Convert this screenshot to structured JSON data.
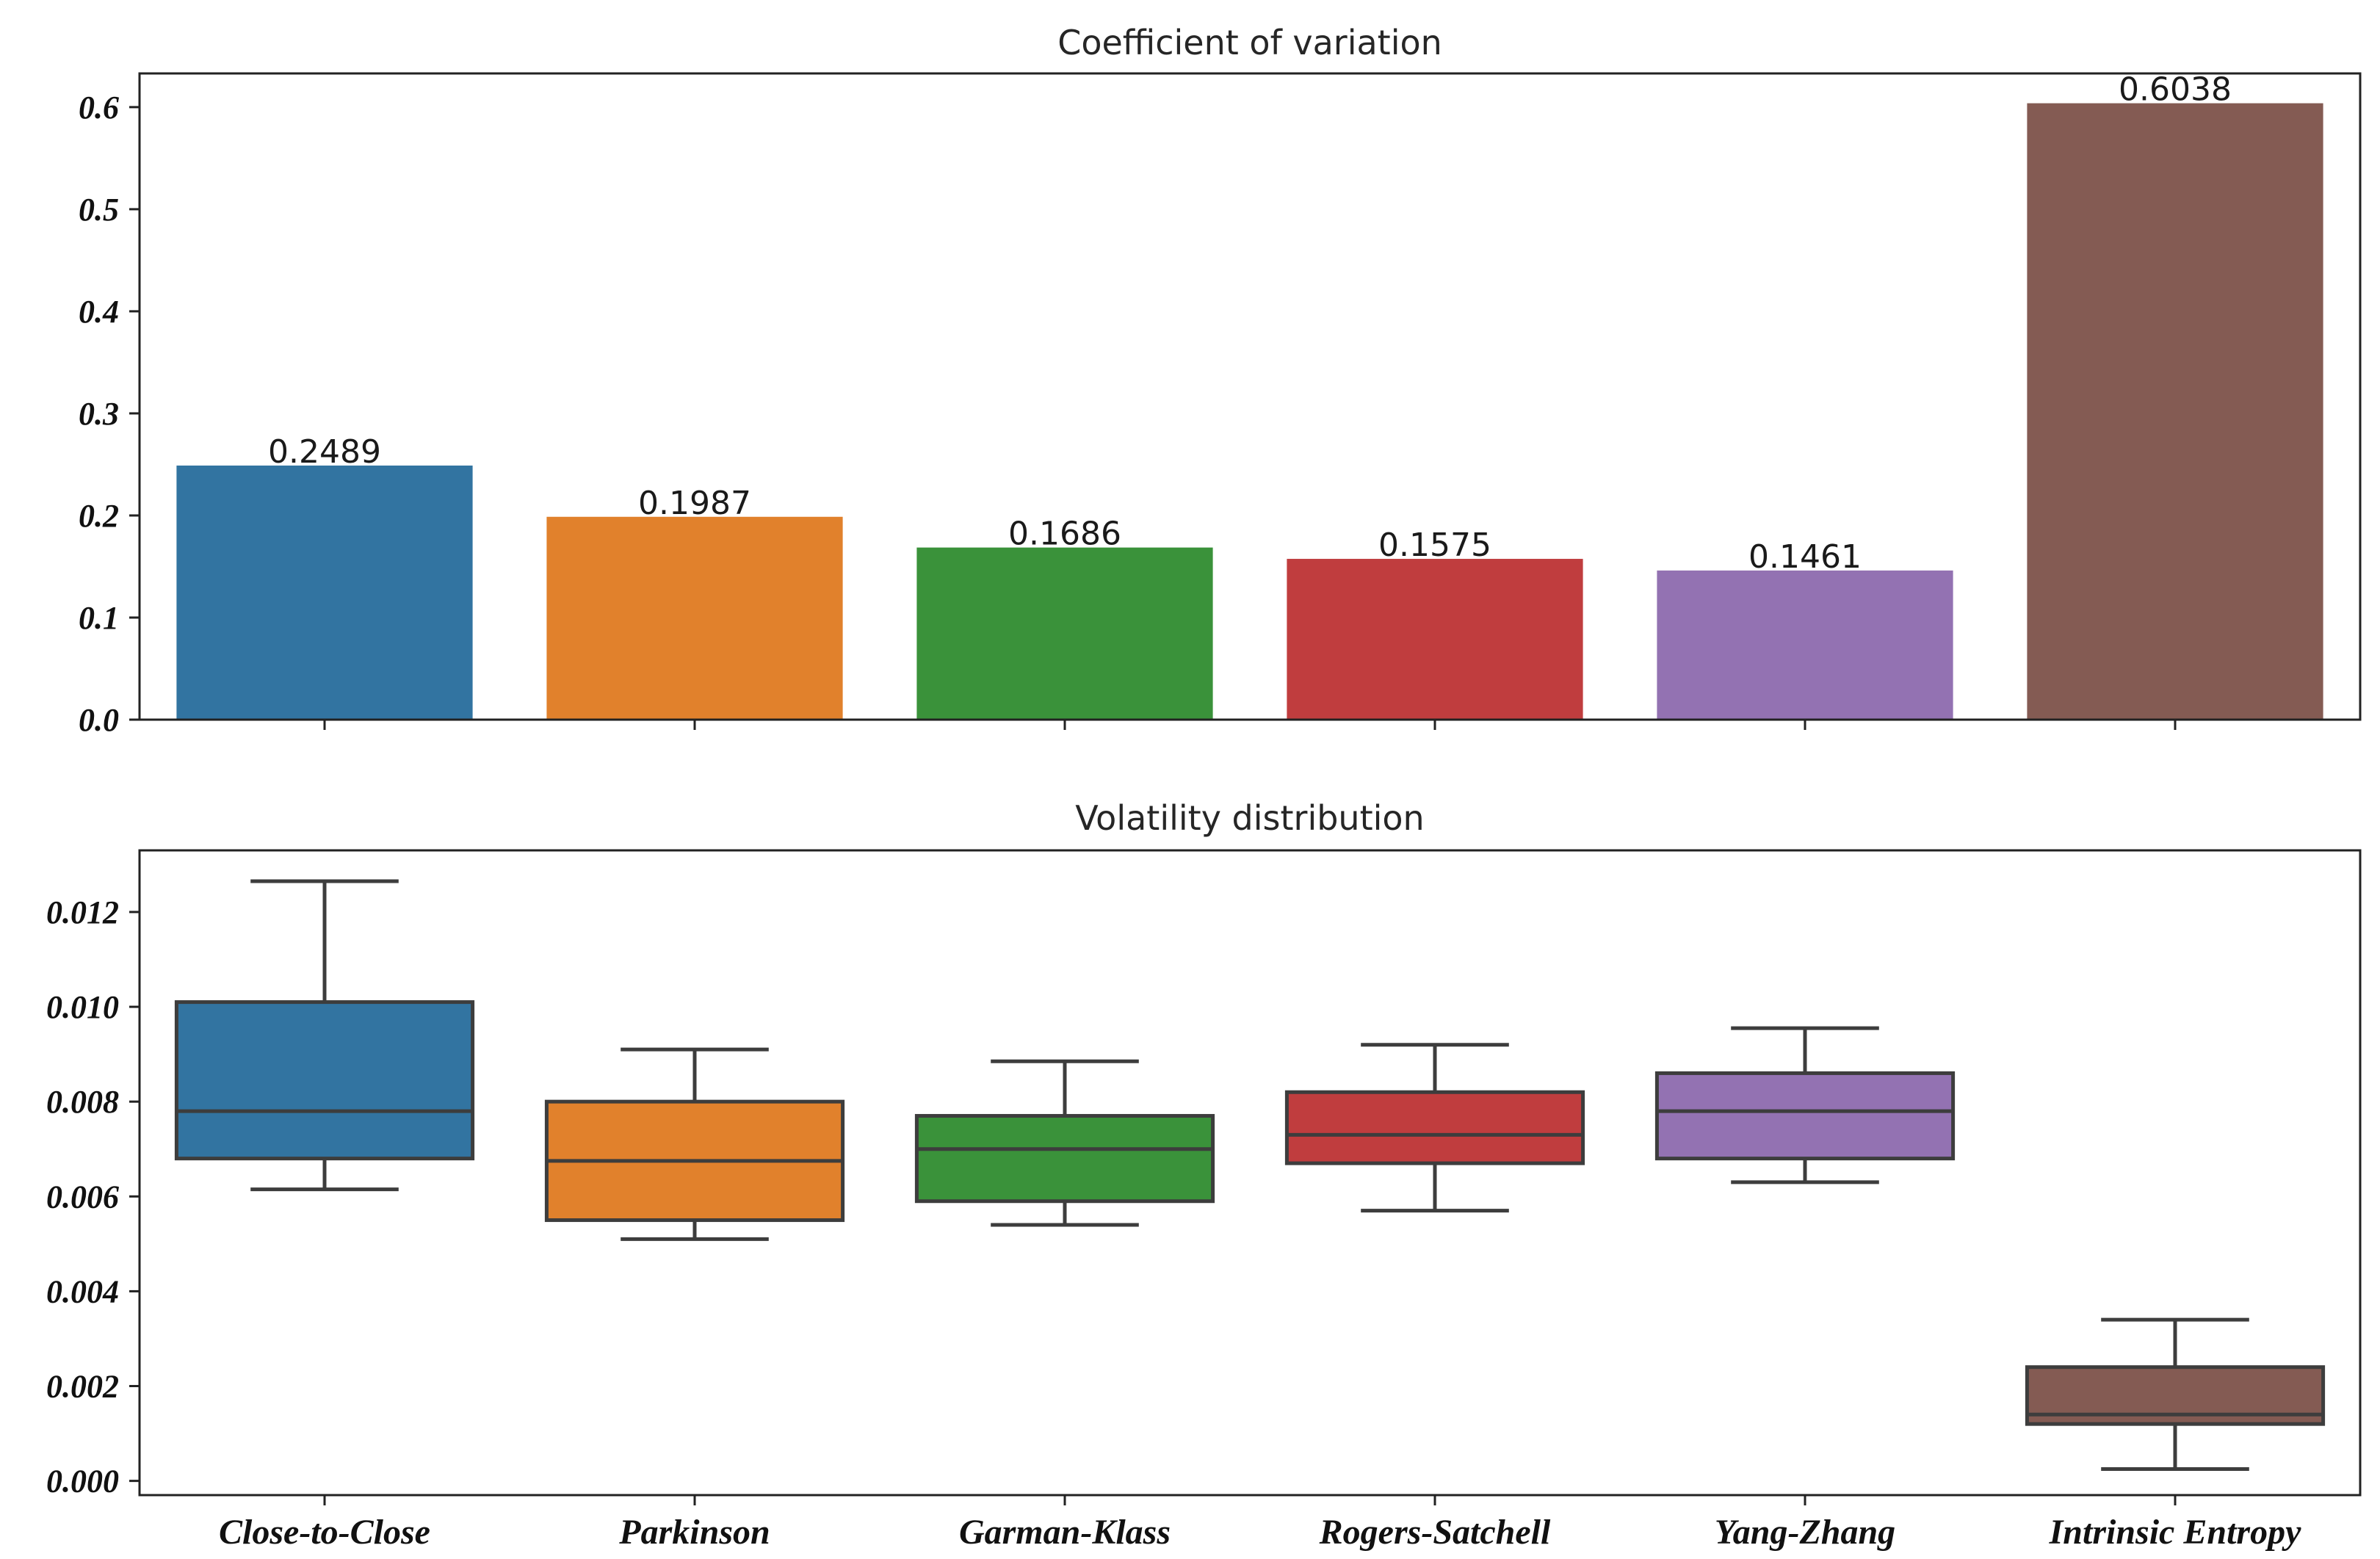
{
  "categories": [
    "Close-to-Close",
    "Parkinson",
    "Garman-Klass",
    "Rogers-Satchell",
    "Yang-Zhang",
    "Intrinsic Entropy"
  ],
  "colors": [
    "#3274a1",
    "#e1812c",
    "#3a923a",
    "#c03d3e",
    "#9372b2",
    "#845b53"
  ],
  "chart_data": [
    {
      "type": "bar",
      "title": "Coefficient of variation",
      "xlabel": "",
      "ylabel": "",
      "categories": [
        "Close-to-Close",
        "Parkinson",
        "Garman-Klass",
        "Rogers-Satchell",
        "Yang-Zhang",
        "Intrinsic Entropy"
      ],
      "values": [
        0.2489,
        0.1987,
        0.1686,
        0.1575,
        0.1461,
        0.6038
      ],
      "data_labels": [
        "0.2489",
        "0.1987",
        "0.1686",
        "0.1575",
        "0.1461",
        "0.6038"
      ],
      "ylim": [
        0,
        0.633
      ],
      "yticks": [
        0.0,
        0.1,
        0.2,
        0.3,
        0.4,
        0.5,
        0.6
      ],
      "ytick_labels": [
        "0.0",
        "0.1",
        "0.2",
        "0.3",
        "0.4",
        "0.5",
        "0.6"
      ],
      "grid": false,
      "legend": "none"
    },
    {
      "type": "box",
      "title": "Volatility distribution",
      "xlabel": "",
      "ylabel": "",
      "categories": [
        "Close-to-Close",
        "Parkinson",
        "Garman-Klass",
        "Rogers-Satchell",
        "Yang-Zhang",
        "Intrinsic Entropy"
      ],
      "boxes": [
        {
          "whisker_low": 0.00615,
          "q1": 0.0068,
          "median": 0.0078,
          "q3": 0.0101,
          "whisker_high": 0.01265
        },
        {
          "whisker_low": 0.0051,
          "q1": 0.0055,
          "median": 0.00675,
          "q3": 0.008,
          "whisker_high": 0.0091
        },
        {
          "whisker_low": 0.0054,
          "q1": 0.0059,
          "median": 0.007,
          "q3": 0.0077,
          "whisker_high": 0.00885
        },
        {
          "whisker_low": 0.0057,
          "q1": 0.0067,
          "median": 0.0073,
          "q3": 0.0082,
          "whisker_high": 0.0092
        },
        {
          "whisker_low": 0.0063,
          "q1": 0.0068,
          "median": 0.0078,
          "q3": 0.0086,
          "whisker_high": 0.00955
        },
        {
          "whisker_low": 0.00025,
          "q1": 0.0012,
          "median": 0.0014,
          "q3": 0.0024,
          "whisker_high": 0.0034
        }
      ],
      "ylim": [
        -0.0003,
        0.0133
      ],
      "yticks": [
        0.0,
        0.002,
        0.004,
        0.006,
        0.008,
        0.01,
        0.012
      ],
      "ytick_labels": [
        "0.000",
        "0.002",
        "0.004",
        "0.006",
        "0.008",
        "0.010",
        "0.012"
      ],
      "grid": false,
      "legend": "none"
    }
  ]
}
